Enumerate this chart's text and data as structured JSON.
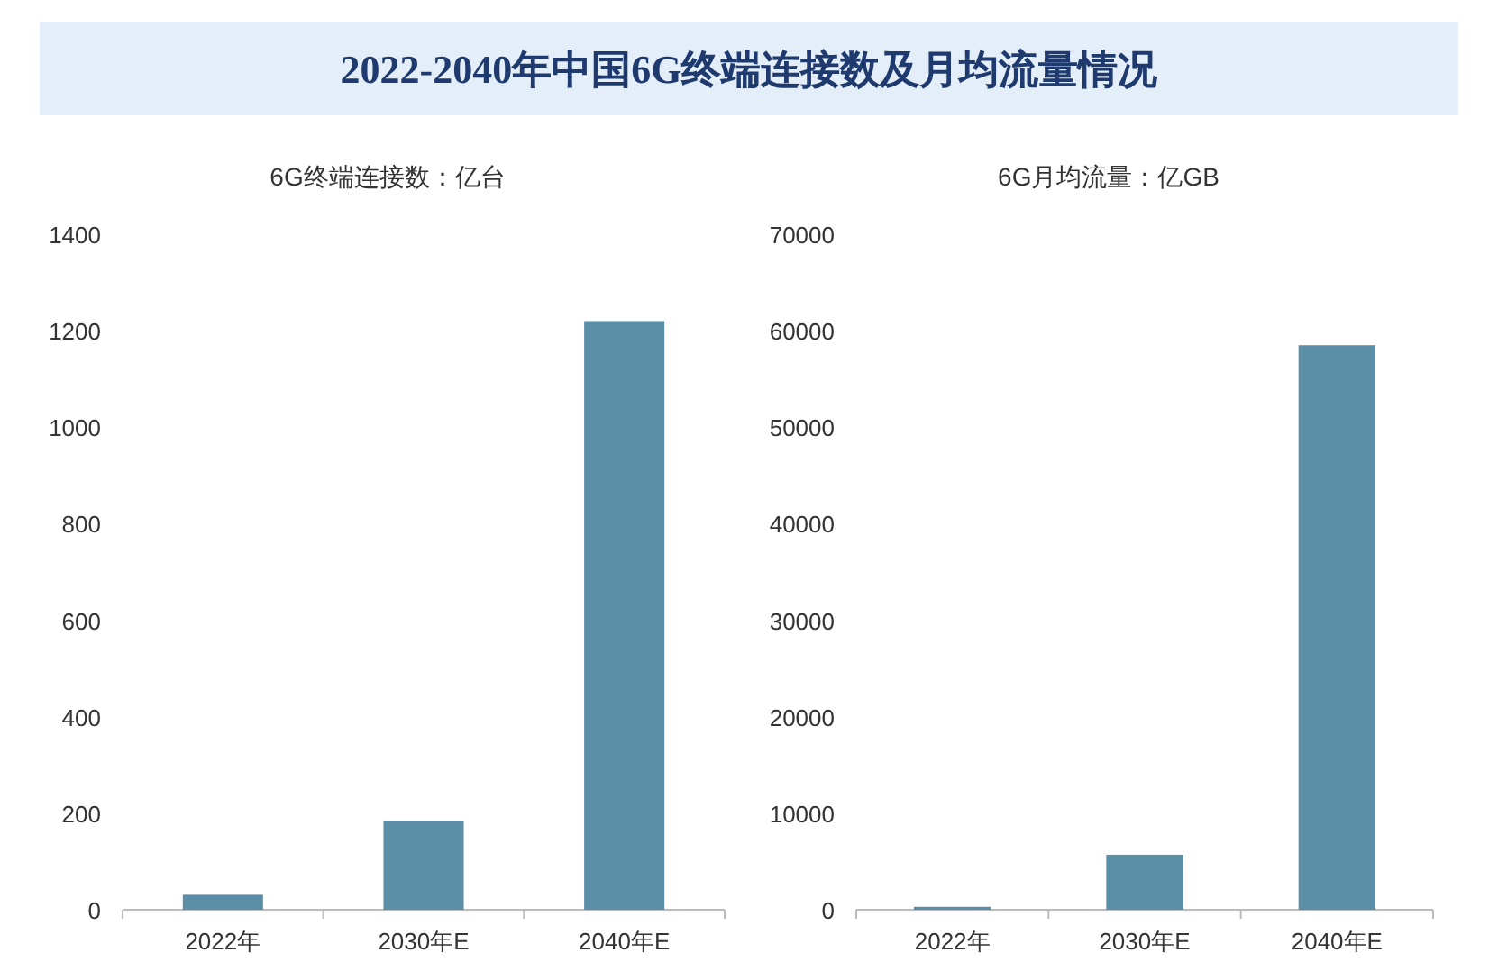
{
  "chart_data": [
    {
      "type": "bar",
      "title": "2022-2040年中国6G终端连接数及月均流量情况",
      "ylabel": "6G终端连接数：亿台",
      "categories": [
        "2022年",
        "2030年E",
        "2040年E"
      ],
      "values": [
        31,
        183,
        1220
      ],
      "color": "#5b8fa8",
      "ylim": [
        0,
        1400
      ],
      "yticks": [
        0,
        200,
        400,
        600,
        800,
        1000,
        1200,
        1400
      ],
      "grid": false,
      "legend": false
    },
    {
      "type": "bar",
      "ylabel": "6G月均流量：亿GB",
      "categories": [
        "2022年",
        "2030年E",
        "2040年E"
      ],
      "values": [
        300,
        5700,
        58500
      ],
      "color": "#5b8fa8",
      "ylim": [
        0,
        70000
      ],
      "yticks": [
        0,
        10000,
        20000,
        30000,
        40000,
        50000,
        60000,
        70000
      ],
      "grid": false,
      "legend": false
    }
  ]
}
